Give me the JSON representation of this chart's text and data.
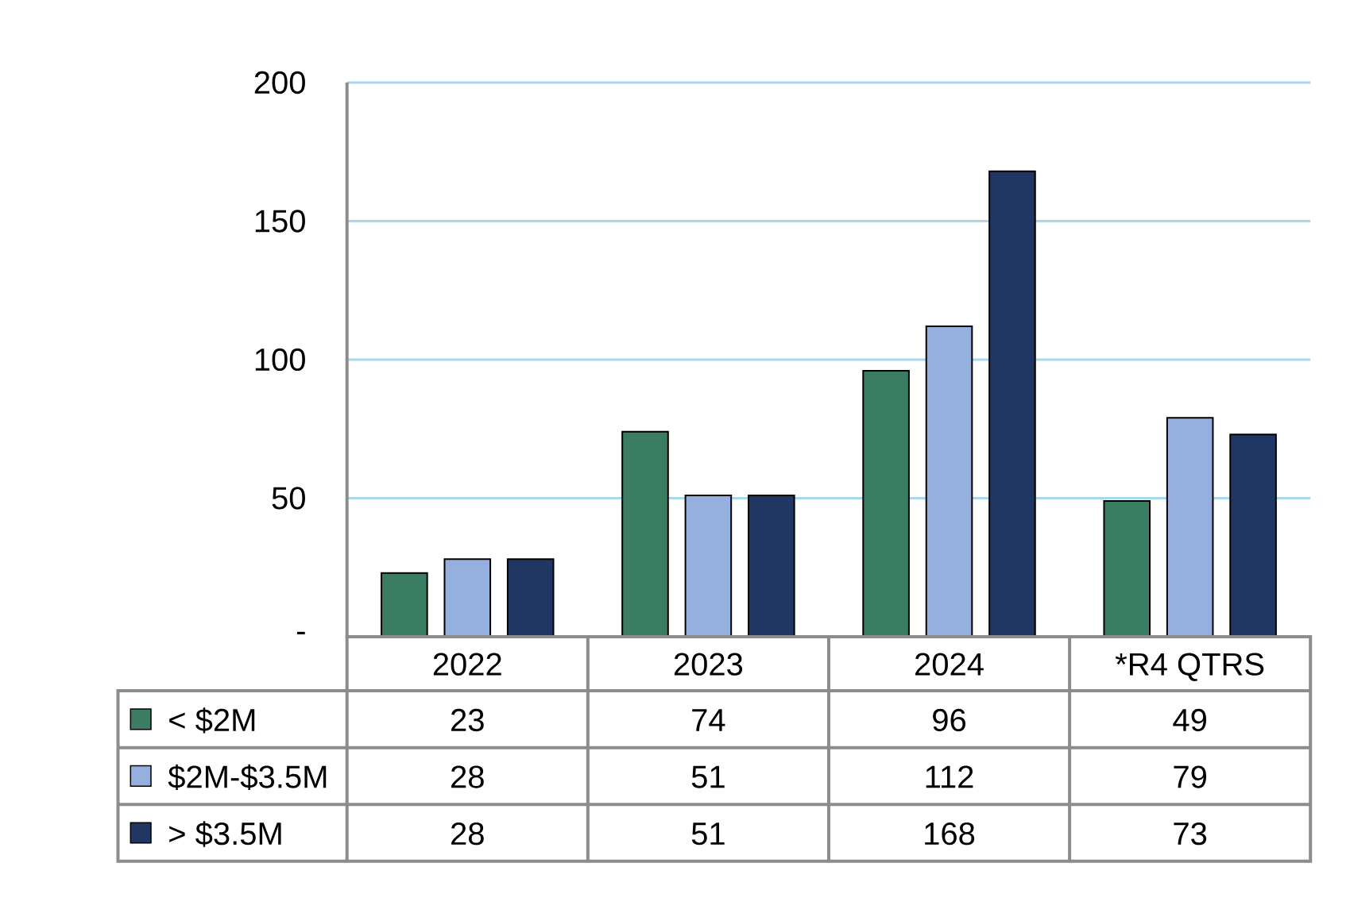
{
  "chart_data": {
    "type": "bar",
    "categories": [
      "2022",
      "2023",
      "2024",
      "*R4 QTRS"
    ],
    "series": [
      {
        "name": "< $2M",
        "color": "#3b7d62",
        "values": [
          23,
          74,
          96,
          49
        ]
      },
      {
        "name": "$2M-$3.5M",
        "color": "#95b0de",
        "values": [
          28,
          51,
          112,
          79
        ]
      },
      {
        "name": "> $3.5M",
        "color": "#203763",
        "values": [
          28,
          51,
          168,
          73
        ]
      }
    ],
    "ylim": [
      0,
      200
    ],
    "yticks": [
      {
        "value": 0,
        "label": "-"
      },
      50,
      100,
      150,
      200
    ],
    "grid": "y",
    "legend": "bottom left",
    "data_labels": true
  }
}
